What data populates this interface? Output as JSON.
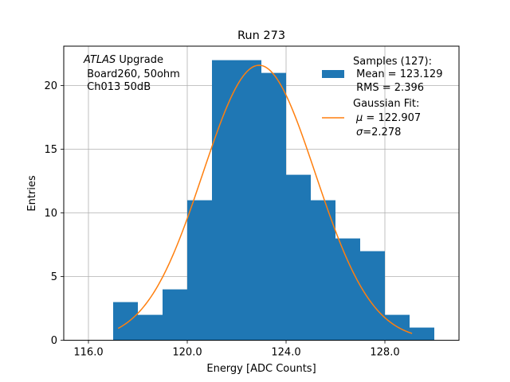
{
  "chart_data": {
    "type": "bar",
    "title": "Run 273",
    "xlabel": "Energy [ADC Counts]",
    "ylabel": "Entries",
    "xlim": [
      115.0,
      131.0
    ],
    "ylim": [
      0,
      23.1
    ],
    "xticks": [
      116.0,
      120.0,
      124.0,
      128.0
    ],
    "xtick_labels": [
      "116.0",
      "120.0",
      "124.0",
      "128.0"
    ],
    "yticks": [
      0,
      5,
      10,
      15,
      20
    ],
    "ytick_labels": [
      "0",
      "5",
      "10",
      "15",
      "20"
    ],
    "grid": true,
    "bins": [
      {
        "left": 117,
        "right": 118,
        "count": 3
      },
      {
        "left": 118,
        "right": 119,
        "count": 2
      },
      {
        "left": 119,
        "right": 120,
        "count": 4
      },
      {
        "left": 120,
        "right": 121,
        "count": 11
      },
      {
        "left": 121,
        "right": 122,
        "count": 22
      },
      {
        "left": 122,
        "right": 123,
        "count": 22
      },
      {
        "left": 123,
        "right": 124,
        "count": 21
      },
      {
        "left": 124,
        "right": 125,
        "count": 13
      },
      {
        "left": 125,
        "right": 126,
        "count": 11
      },
      {
        "left": 126,
        "right": 127,
        "count": 8
      },
      {
        "left": 127,
        "right": 128,
        "count": 7
      },
      {
        "left": 128,
        "right": 129,
        "count": 2
      },
      {
        "left": 129,
        "right": 130,
        "count": 1
      }
    ],
    "fit": {
      "mu": 122.907,
      "sigma": 2.278,
      "amplitude": 21.6,
      "x_range": [
        117.2,
        129.1
      ]
    },
    "annotation": {
      "line1_italic": "ATLAS",
      "line1_rest": " Upgrade",
      "line2": " Board260, 50ohm",
      "line3": " Ch013 50dB"
    },
    "legend": {
      "placement": "top-right",
      "histogram": {
        "line1": "Samples (127):",
        "line2": " Mean = 123.129",
        "line3": " RMS = 2.396"
      },
      "fit": {
        "line1": "Gaussian Fit:",
        "line2_sym": "μ",
        "line2_rest": " = 122.907",
        "line3_sym": "σ",
        "line3_rest": "=2.278"
      }
    },
    "colors": {
      "bars": "#1f77b4",
      "fit_line": "#ff7f0e",
      "grid": "#b0b0b0"
    }
  }
}
